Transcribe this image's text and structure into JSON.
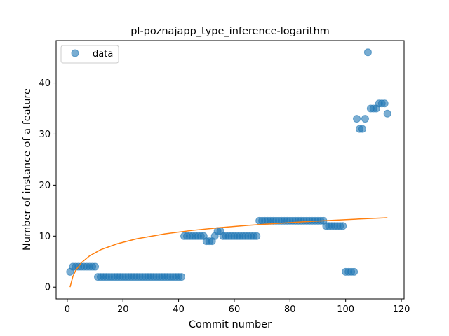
{
  "chart_data": {
    "type": "scatter",
    "title": "pl-poznajapp_type_inference-logarithm",
    "xlabel": "Commit number",
    "ylabel": "Number of instance of a feature",
    "xlim": [
      -4,
      121
    ],
    "ylim": [
      -2.3,
      48.3
    ],
    "xticks": [
      0,
      20,
      40,
      60,
      80,
      100,
      120
    ],
    "yticks": [
      0,
      10,
      20,
      30,
      40
    ],
    "legend": {
      "position": "top-left",
      "entries": [
        "data"
      ]
    },
    "grid": false,
    "colors": {
      "points": "#1f77b4",
      "fit": "#ff7f0e"
    },
    "series": [
      {
        "name": "data",
        "kind": "scatter",
        "x": [
          1,
          2,
          3,
          4,
          5,
          6,
          7,
          8,
          9,
          10,
          11,
          12,
          13,
          14,
          15,
          16,
          17,
          18,
          19,
          20,
          21,
          22,
          23,
          24,
          25,
          26,
          27,
          28,
          29,
          30,
          31,
          32,
          33,
          34,
          35,
          36,
          37,
          38,
          39,
          40,
          41,
          42,
          43,
          44,
          45,
          46,
          47,
          48,
          49,
          50,
          51,
          52,
          53,
          54,
          55,
          56,
          57,
          58,
          59,
          60,
          61,
          62,
          63,
          64,
          65,
          66,
          67,
          68,
          69,
          70,
          71,
          72,
          73,
          74,
          75,
          76,
          77,
          78,
          79,
          80,
          81,
          82,
          83,
          84,
          85,
          86,
          87,
          88,
          89,
          90,
          91,
          92,
          93,
          94,
          95,
          96,
          97,
          98,
          99,
          100,
          101,
          102,
          103,
          104,
          105,
          106,
          107,
          108,
          109,
          110,
          111,
          112,
          113,
          114,
          115
        ],
        "y": [
          3,
          4,
          4,
          4,
          4,
          4,
          4,
          4,
          4,
          4,
          2,
          2,
          2,
          2,
          2,
          2,
          2,
          2,
          2,
          2,
          2,
          2,
          2,
          2,
          2,
          2,
          2,
          2,
          2,
          2,
          2,
          2,
          2,
          2,
          2,
          2,
          2,
          2,
          2,
          2,
          2,
          10,
          10,
          10,
          10,
          10,
          10,
          10,
          10,
          9,
          9,
          9,
          10,
          11,
          11,
          10,
          10,
          10,
          10,
          10,
          10,
          10,
          10,
          10,
          10,
          10,
          10,
          10,
          13,
          13,
          13,
          13,
          13,
          13,
          13,
          13,
          13,
          13,
          13,
          13,
          13,
          13,
          13,
          13,
          13,
          13,
          13,
          13,
          13,
          13,
          13,
          13,
          12,
          12,
          12,
          12,
          12,
          12,
          12,
          3,
          3,
          3,
          3,
          33,
          31,
          31,
          33,
          46,
          35,
          35,
          35,
          36,
          36,
          36,
          34
        ]
      },
      {
        "name": "",
        "kind": "line",
        "x": [
          1,
          2,
          3,
          5,
          8,
          12,
          18,
          25,
          35,
          45,
          55,
          65,
          75,
          85,
          95,
          105,
          115
        ],
        "y": [
          0,
          2.04,
          3.23,
          4.75,
          6.12,
          7.32,
          8.5,
          9.48,
          10.44,
          11.13,
          11.67,
          12.12,
          12.47,
          12.81,
          13.1,
          13.36,
          13.6
        ]
      }
    ]
  }
}
